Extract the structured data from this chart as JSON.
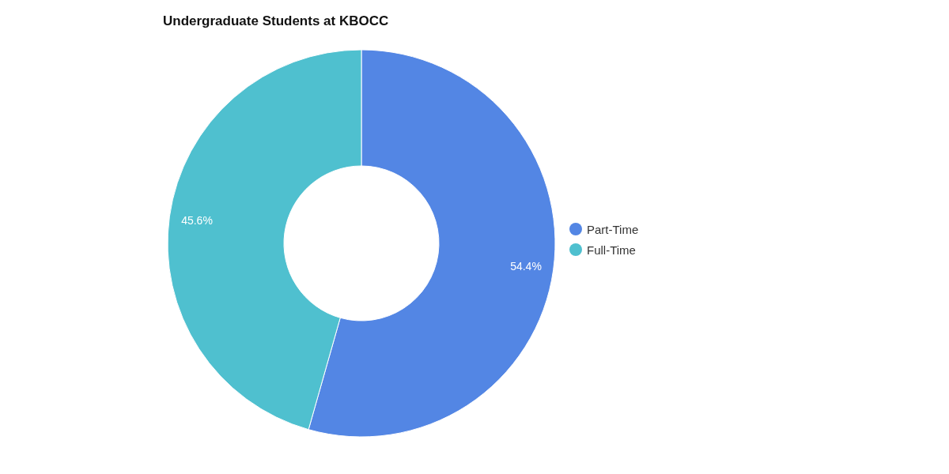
{
  "chart_data": {
    "type": "donut",
    "title": "Undergraduate Students at KBOCC",
    "categories": [
      "Part-Time",
      "Full-Time"
    ],
    "values": [
      54.4,
      45.6
    ],
    "colors": [
      "#5386e4",
      "#4fc0cf"
    ],
    "value_labels": [
      "54.4%",
      "45.6%"
    ],
    "legend": "right"
  }
}
